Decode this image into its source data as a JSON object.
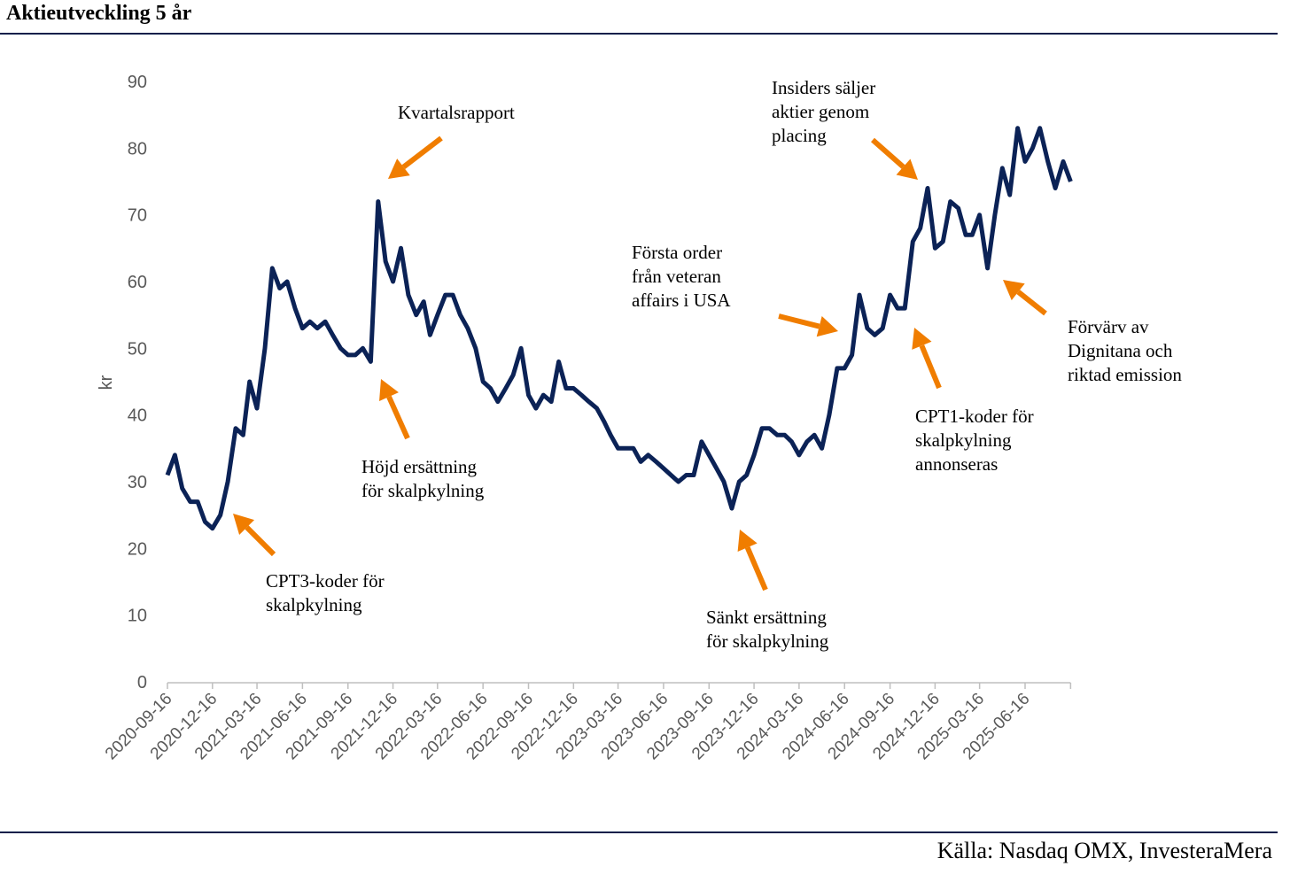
{
  "title": "Aktieutveckling 5 år",
  "source": "Källa: Nasdaq OMX, InvesteraMera",
  "colors": {
    "line": "#0b2256",
    "arrow": "#f07d00",
    "rule": "#0b1f4a",
    "axis_text": "#595959"
  },
  "chart_data": {
    "type": "line",
    "title": "Aktieutveckling 5 år",
    "ylabel": "kr",
    "xlabel": "",
    "ylim": [
      0,
      90
    ],
    "yticks": [
      0,
      10,
      20,
      30,
      40,
      50,
      60,
      70,
      80,
      90
    ],
    "xticks": [
      "2020-09-16",
      "2020-12-16",
      "2021-03-16",
      "2021-06-16",
      "2021-09-16",
      "2021-12-16",
      "2022-03-16",
      "2022-06-16",
      "2022-09-16",
      "2022-12-16",
      "2023-03-16",
      "2023-06-16",
      "2023-09-16",
      "2023-12-16",
      "2024-03-16",
      "2024-06-16",
      "2024-09-16",
      "2024-12-16",
      "2025-03-16",
      "2025-06-16"
    ],
    "xlim": [
      "2020-09-16",
      "2025-09-16"
    ],
    "grid": false,
    "series": [
      {
        "points": [
          [
            "2020-09-16",
            31
          ],
          [
            "2020-10-01",
            34
          ],
          [
            "2020-10-16",
            29
          ],
          [
            "2020-11-01",
            27
          ],
          [
            "2020-11-16",
            27
          ],
          [
            "2020-12-01",
            24
          ],
          [
            "2020-12-16",
            23
          ],
          [
            "2021-01-01",
            25
          ],
          [
            "2021-01-16",
            30
          ],
          [
            "2021-02-01",
            38
          ],
          [
            "2021-02-16",
            37
          ],
          [
            "2021-03-01",
            45
          ],
          [
            "2021-03-16",
            41
          ],
          [
            "2021-04-01",
            50
          ],
          [
            "2021-04-16",
            62
          ],
          [
            "2021-05-01",
            59
          ],
          [
            "2021-05-16",
            60
          ],
          [
            "2021-06-01",
            56
          ],
          [
            "2021-06-16",
            53
          ],
          [
            "2021-07-01",
            54
          ],
          [
            "2021-07-16",
            53
          ],
          [
            "2021-08-01",
            54
          ],
          [
            "2021-08-16",
            52
          ],
          [
            "2021-09-01",
            50
          ],
          [
            "2021-09-16",
            49
          ],
          [
            "2021-10-01",
            49
          ],
          [
            "2021-10-16",
            50
          ],
          [
            "2021-11-01",
            48
          ],
          [
            "2021-11-16",
            72
          ],
          [
            "2021-12-01",
            63
          ],
          [
            "2021-12-16",
            60
          ],
          [
            "2022-01-01",
            65
          ],
          [
            "2022-01-16",
            58
          ],
          [
            "2022-02-01",
            55
          ],
          [
            "2022-02-16",
            57
          ],
          [
            "2022-03-01",
            52
          ],
          [
            "2022-03-16",
            55
          ],
          [
            "2022-04-01",
            58
          ],
          [
            "2022-04-16",
            58
          ],
          [
            "2022-05-01",
            55
          ],
          [
            "2022-05-16",
            53
          ],
          [
            "2022-06-01",
            50
          ],
          [
            "2022-06-16",
            45
          ],
          [
            "2022-07-01",
            44
          ],
          [
            "2022-07-16",
            42
          ],
          [
            "2022-08-01",
            44
          ],
          [
            "2022-08-16",
            46
          ],
          [
            "2022-09-01",
            50
          ],
          [
            "2022-09-16",
            43
          ],
          [
            "2022-10-01",
            41
          ],
          [
            "2022-10-16",
            43
          ],
          [
            "2022-11-01",
            42
          ],
          [
            "2022-11-16",
            48
          ],
          [
            "2022-12-01",
            44
          ],
          [
            "2022-12-16",
            44
          ],
          [
            "2023-01-01",
            43
          ],
          [
            "2023-01-16",
            42
          ],
          [
            "2023-02-01",
            41
          ],
          [
            "2023-02-16",
            39
          ],
          [
            "2023-03-01",
            37
          ],
          [
            "2023-03-16",
            35
          ],
          [
            "2023-04-01",
            35
          ],
          [
            "2023-04-16",
            35
          ],
          [
            "2023-05-01",
            33
          ],
          [
            "2023-05-16",
            34
          ],
          [
            "2023-06-01",
            33
          ],
          [
            "2023-06-16",
            32
          ],
          [
            "2023-07-01",
            31
          ],
          [
            "2023-07-16",
            30
          ],
          [
            "2023-08-01",
            31
          ],
          [
            "2023-08-16",
            31
          ],
          [
            "2023-09-01",
            36
          ],
          [
            "2023-09-16",
            34
          ],
          [
            "2023-10-01",
            32
          ],
          [
            "2023-10-16",
            30
          ],
          [
            "2023-11-01",
            26
          ],
          [
            "2023-11-16",
            30
          ],
          [
            "2023-12-01",
            31
          ],
          [
            "2023-12-16",
            34
          ],
          [
            "2024-01-01",
            38
          ],
          [
            "2024-01-16",
            38
          ],
          [
            "2024-02-01",
            37
          ],
          [
            "2024-02-16",
            37
          ],
          [
            "2024-03-01",
            36
          ],
          [
            "2024-03-16",
            34
          ],
          [
            "2024-04-01",
            36
          ],
          [
            "2024-04-16",
            37
          ],
          [
            "2024-05-01",
            35
          ],
          [
            "2024-05-16",
            40
          ],
          [
            "2024-06-01",
            47
          ],
          [
            "2024-06-16",
            47
          ],
          [
            "2024-07-01",
            49
          ],
          [
            "2024-07-16",
            58
          ],
          [
            "2024-08-01",
            53
          ],
          [
            "2024-08-16",
            52
          ],
          [
            "2024-09-01",
            53
          ],
          [
            "2024-09-16",
            58
          ],
          [
            "2024-10-01",
            56
          ],
          [
            "2024-10-16",
            56
          ],
          [
            "2024-11-01",
            66
          ],
          [
            "2024-11-16",
            68
          ],
          [
            "2024-12-01",
            74
          ],
          [
            "2024-12-16",
            65
          ],
          [
            "2025-01-01",
            66
          ],
          [
            "2025-01-16",
            72
          ],
          [
            "2025-02-01",
            71
          ],
          [
            "2025-02-16",
            67
          ],
          [
            "2025-03-01",
            67
          ],
          [
            "2025-03-16",
            70
          ],
          [
            "2025-04-01",
            62
          ],
          [
            "2025-04-16",
            70
          ],
          [
            "2025-05-01",
            77
          ],
          [
            "2025-05-16",
            73
          ],
          [
            "2025-06-01",
            83
          ],
          [
            "2025-06-16",
            78
          ],
          [
            "2025-07-01",
            80
          ],
          [
            "2025-07-16",
            83
          ],
          [
            "2025-08-01",
            78
          ],
          [
            "2025-08-16",
            74
          ],
          [
            "2025-09-01",
            78
          ],
          [
            "2025-09-16",
            75
          ]
        ]
      }
    ],
    "annotations": [
      {
        "text": "Kvartalsrapport"
      },
      {
        "text": "Höjd ersättning\nför skalpkylning"
      },
      {
        "text": "CPT3-koder för\nskalpkylning"
      },
      {
        "text": "Sänkt ersättning\nför skalpkylning"
      },
      {
        "text": "Första order\nfrån veteran\naffairs i USA"
      },
      {
        "text": "CPT1-koder för\nskalpkylning\nannonseras"
      },
      {
        "text": "Insiders säljer\naktier genom\nplacing"
      },
      {
        "text": "Förvärv av\nDignitana och\nriktad emission"
      }
    ]
  }
}
